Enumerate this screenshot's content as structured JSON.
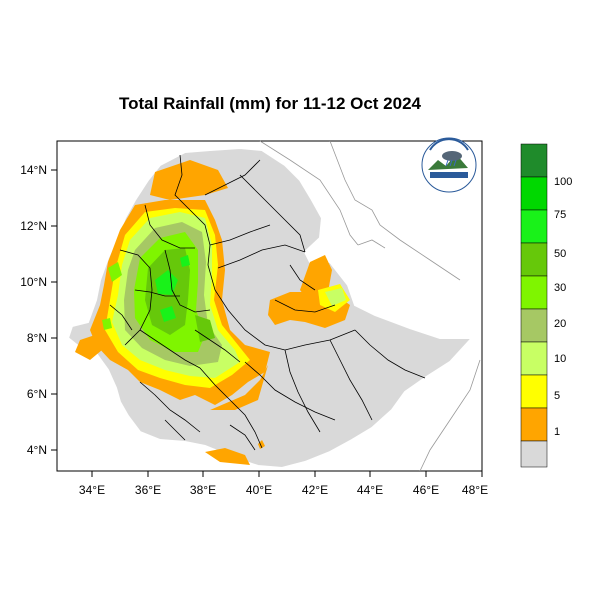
{
  "title": "Total Rainfall (mm) for 11-12 Oct 2024",
  "colors": {
    "land": "#d9d9d9",
    "border": "#000000",
    "outer_border": "#ffffff"
  },
  "axes": {
    "x_ticks": [
      "34°E",
      "36°E",
      "38°E",
      "40°E",
      "42°E",
      "44°E",
      "46°E",
      "48°E"
    ],
    "y_ticks": [
      "14°N",
      "12°N",
      "10°N",
      "8°N",
      "6°N",
      "4°N"
    ]
  },
  "legend": {
    "labels": [
      "100",
      "75",
      "50",
      "30",
      "20",
      "10",
      "5",
      "1"
    ],
    "colors": [
      "#1f8b2b",
      "#00d800",
      "#19f219",
      "#66c80a",
      "#7ff500",
      "#a6c864",
      "#c8ff64",
      "#ffff00",
      "#ffa500",
      "#d9d9d9"
    ]
  },
  "logo": {
    "icon": "meteorology-agency-logo-icon"
  }
}
